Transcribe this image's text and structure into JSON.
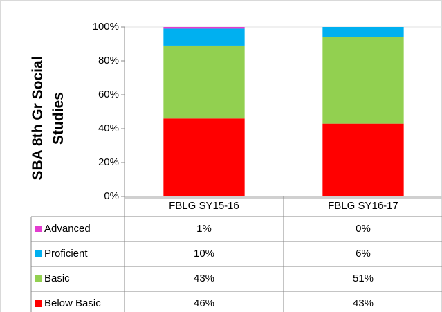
{
  "chart_data": {
    "type": "bar",
    "stacked": true,
    "y_label": "SBA 8th Gr Social Studies",
    "categories": [
      "FBLG SY15-16",
      "FBLG SY16-17"
    ],
    "series": [
      {
        "name": "Below Basic",
        "color": "#ff0000",
        "values": [
          46,
          43
        ],
        "value_labels": [
          "46%",
          "43%"
        ]
      },
      {
        "name": "Basic",
        "color": "#92d050",
        "values": [
          43,
          51
        ],
        "value_labels": [
          "43%",
          "51%"
        ]
      },
      {
        "name": "Proficient",
        "color": "#00b0f0",
        "values": [
          10,
          6
        ],
        "value_labels": [
          "10%",
          "6%"
        ]
      },
      {
        "name": "Advanced",
        "color": "#e33bd0",
        "values": [
          1,
          0
        ],
        "value_labels": [
          "1%",
          "0%"
        ]
      }
    ],
    "ylim": [
      0,
      100
    ],
    "yticks": [
      {
        "value": 0,
        "label": "0%"
      },
      {
        "value": 20,
        "label": "20%"
      },
      {
        "value": 40,
        "label": "40%"
      },
      {
        "value": 60,
        "label": "60%"
      },
      {
        "value": 80,
        "label": "80%"
      },
      {
        "value": 100,
        "label": "100%"
      }
    ],
    "data_table": true
  }
}
